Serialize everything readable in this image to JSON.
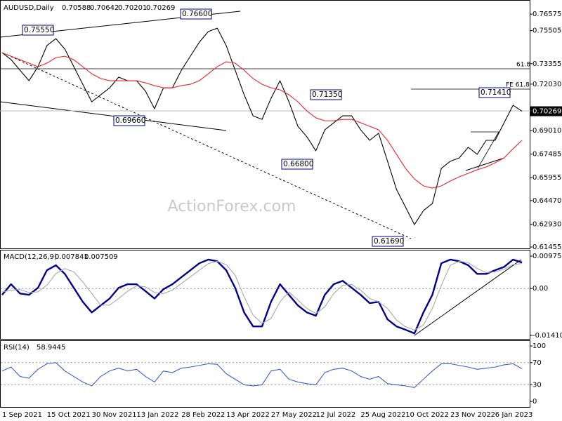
{
  "chart_data": [
    {
      "type": "line",
      "title": "AUDUSD,Daily",
      "ohlc": [
        0.70588,
        0.70642,
        0.70201,
        0.70269
      ],
      "categories": [
        "1 Sep 2021",
        null,
        null,
        null,
        null,
        "15 Oct 2021",
        null,
        null,
        null,
        null,
        "30 Nov 2021",
        null,
        null,
        null,
        null,
        "13 Jan 2022",
        null,
        null,
        null,
        null,
        "28 Feb 2022",
        null,
        null,
        null,
        null,
        "13 Apr 2022",
        null,
        null,
        null,
        null,
        "27 May 2022",
        null,
        null,
        null,
        null,
        "12 Jul 2022",
        null,
        null,
        null,
        null,
        "25 Aug 2022",
        null,
        null,
        null,
        null,
        "10 Oct 2022",
        null,
        null,
        null,
        null,
        "23 Nov 2022",
        null,
        null,
        null,
        null,
        "6 Jan 2023",
        null,
        null,
        null
      ],
      "series": [
        {
          "color": "#000000",
          "values": [
            0.7407,
            0.7362,
            0.7293,
            0.7225,
            0.7316,
            0.7453,
            0.7498,
            0.743,
            0.7316,
            0.7202,
            0.7088,
            0.7134,
            0.7179,
            0.7248,
            0.7225,
            0.7225,
            0.7157,
            0.7043,
            0.7179,
            0.7179,
            0.7293,
            0.7384,
            0.7475,
            0.7544,
            0.7566,
            0.7453,
            0.7293,
            0.7134,
            0.6997,
            0.6974,
            0.7111,
            0.7225,
            0.7088,
            0.6929,
            0.6861,
            0.677,
            0.6906,
            0.6952,
            0.6997,
            0.6997,
            0.6906,
            0.6838,
            0.6884,
            0.6702,
            0.6519,
            0.6405,
            0.6291,
            0.6382,
            0.6428,
            0.6656,
            0.6702,
            0.6724,
            0.6793,
            0.6747,
            0.6838,
            0.6838,
            0.6952,
            0.7066,
            0.70269
          ]
        },
        {
          "color": "#e8262b",
          "values": [
            0.7407,
            0.7384,
            0.7361,
            0.7339,
            0.7316,
            0.7339,
            0.7375,
            0.7384,
            0.7361,
            0.7316,
            0.727,
            0.7239,
            0.7225,
            0.7225,
            0.7225,
            0.7225,
            0.7211,
            0.7193,
            0.7179,
            0.7179,
            0.7193,
            0.7202,
            0.7225,
            0.727,
            0.7316,
            0.7348,
            0.7339,
            0.7293,
            0.7239,
            0.7202,
            0.7179,
            0.7166,
            0.7134,
            0.7088,
            0.7029,
            0.6984,
            0.6965,
            0.6965,
            0.6974,
            0.6974,
            0.6952,
            0.6929,
            0.6906,
            0.6838,
            0.6747,
            0.6656,
            0.6587,
            0.6542,
            0.6528,
            0.6542,
            0.6574,
            0.6601,
            0.6624,
            0.6647,
            0.6665,
            0.6692,
            0.6724,
            0.6783,
            0.6838
          ]
        }
      ],
      "ylim": [
        0.6132,
        0.7749
      ],
      "yticks": [
        0.76575,
        0.75505,
        0.73355,
        {
          "value": 0.7203,
          "label": "0.72030"
        },
        {
          "value": 0.6901,
          "label": "0.69010"
        },
        0.67485,
        0.65955,
        {
          "value": 0.6447,
          "label": "0.64470"
        },
        {
          "value": 0.6293,
          "label": "0.62930"
        },
        0.61455
      ],
      "grid": false,
      "annotations": [
        "0.75550",
        "0.76600",
        "0.69660",
        "0.71350",
        "0.66800",
        "0.71410",
        "0.61690",
        "61.8",
        "FE 61.8"
      ],
      "watermark": "ActionForex.com"
    },
    {
      "type": "line",
      "title": "MACD(12,26,9)",
      "series": [
        {
          "color": "#00008b",
          "values": [
            -0.0019,
            0.0013,
            -0.0015,
            -0.0019,
            0.0002,
            0.0055,
            0.007,
            0.0044,
            0.0002,
            -0.004,
            -0.0072,
            -0.0051,
            -0.003,
            0.0002,
            0.0013,
            0.0013,
            -0.0008,
            -0.003,
            -0.0002,
            0.0013,
            0.0034,
            0.0055,
            0.0076,
            0.0087,
            0.0082,
            0.0055,
            0.0002,
            -0.0072,
            -0.0114,
            -0.0114,
            -0.004,
            0.0013,
            -0.0019,
            -0.0051,
            -0.0072,
            -0.0082,
            -0.0019,
            0.0013,
            0.0023,
            0.0002,
            -0.0019,
            -0.0044,
            -0.004,
            -0.0093,
            -0.0114,
            -0.0124,
            -0.0135,
            -0.0072,
            -0.0019,
            0.0076,
            0.0087,
            0.0082,
            0.007,
            0.0044,
            0.0044,
            0.0055,
            0.0065,
            0.0087,
            0.007841
          ]
        },
        {
          "color": "#a9a9a9",
          "values": [
            -0.001,
            -0.0005,
            -0.0003,
            -0.0012,
            -0.001,
            0.001,
            0.0045,
            0.006,
            0.005,
            0.002,
            -0.0015,
            -0.005,
            -0.005,
            -0.003,
            -0.0008,
            0.0008,
            0.0005,
            -0.0012,
            -0.0015,
            -0.0005,
            0.0015,
            0.0035,
            0.0055,
            0.0075,
            0.0082,
            0.0072,
            0.004,
            -0.0025,
            -0.008,
            -0.0105,
            -0.009,
            -0.004,
            -0.001,
            -0.0035,
            -0.006,
            -0.0075,
            -0.0055,
            -0.0015,
            0.001,
            0.0012,
            -0.0005,
            -0.003,
            -0.004,
            -0.006,
            -0.0095,
            -0.0115,
            -0.0125,
            -0.011,
            -0.006,
            0.001,
            0.007,
            0.0082,
            0.0078,
            0.006,
            0.0048,
            0.005,
            0.0058,
            0.0072,
            0.007509
          ]
        }
      ],
      "ylim": [
        -0.01516,
        0.01144
      ],
      "yticks": [
        0.009751,
        {
          "value": 0,
          "label": "0.00"
        },
        -0.014107
      ],
      "grid": true
    },
    {
      "type": "line",
      "title": "RSI(14)",
      "series": [
        {
          "color": "#3a5fcd",
          "values": [
            55,
            62,
            45,
            42,
            58,
            68,
            70,
            55,
            45,
            35,
            28,
            45,
            55,
            60,
            55,
            58,
            45,
            35,
            55,
            52,
            60,
            62,
            65,
            68,
            67,
            50,
            40,
            30,
            28,
            30,
            55,
            58,
            40,
            35,
            32,
            30,
            52,
            58,
            60,
            55,
            45,
            40,
            45,
            32,
            30,
            28,
            25,
            40,
            55,
            68,
            68,
            65,
            62,
            58,
            60,
            62,
            66,
            68,
            58.9445
          ]
        }
      ],
      "ylim": [
        -10,
        109
      ],
      "yticks": [
        100,
        70,
        30,
        0
      ],
      "grid": true
    }
  ]
}
